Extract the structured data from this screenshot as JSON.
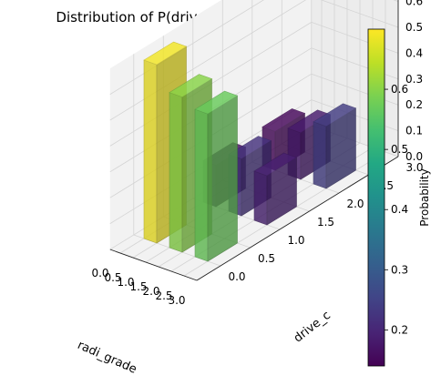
{
  "chart_data": {
    "type": "bar3d",
    "title": "Distribution of P(drive_c|radi_grade)",
    "xlabel": "radi_grade",
    "ylabel": "drive_c",
    "zlabel": "",
    "x_ticks": [
      "0.0",
      "0.5",
      "1.0",
      "1.5",
      "2.0",
      "2.5",
      "3.0"
    ],
    "y_ticks": [
      "0.0",
      "0.5",
      "1.0",
      "1.5",
      "2.0",
      "2.5",
      "3.0"
    ],
    "z_ticks": [
      "0.0",
      "0.1",
      "0.2",
      "0.3",
      "0.4",
      "0.5",
      "0.6"
    ],
    "xlim": [
      0,
      3
    ],
    "ylim": [
      0,
      3
    ],
    "zlim": [
      0,
      0.7
    ],
    "grid": true,
    "colormap": "viridis",
    "colorbar": {
      "label": "Probability",
      "min": 0.14,
      "max": 0.7,
      "ticks": [
        "0.2",
        "0.3",
        "0.4",
        "0.5",
        "0.6"
      ]
    },
    "bars": [
      {
        "x": 0,
        "y": 0,
        "value": 0.69
      },
      {
        "x": 0,
        "y": 1,
        "value": 0.16
      },
      {
        "x": 0,
        "y": 2,
        "value": 0.15
      },
      {
        "x": 1,
        "y": 0,
        "value": 0.6
      },
      {
        "x": 1,
        "y": 1,
        "value": 0.22
      },
      {
        "x": 1,
        "y": 2,
        "value": 0.18
      },
      {
        "x": 2,
        "y": 0,
        "value": 0.57
      },
      {
        "x": 2,
        "y": 1,
        "value": 0.19
      },
      {
        "x": 2,
        "y": 2,
        "value": 0.24
      }
    ]
  }
}
